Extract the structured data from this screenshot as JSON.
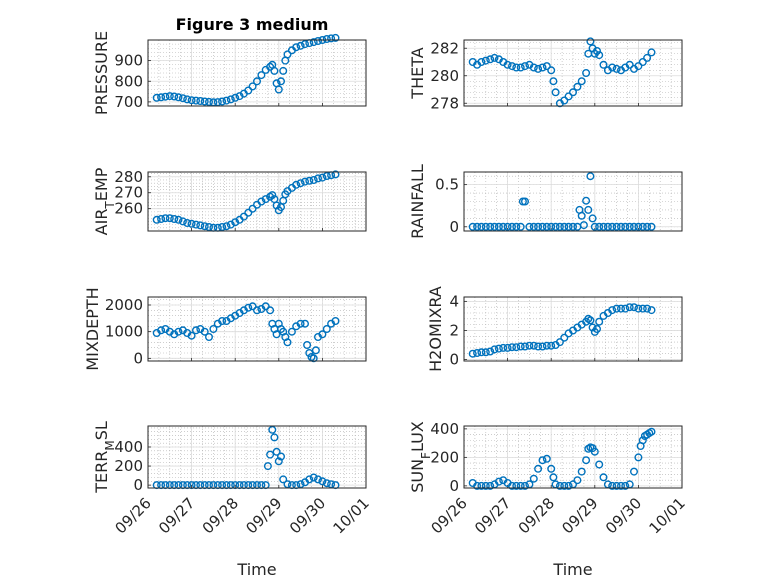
{
  "figure_title": "Figure 3 medium",
  "xlabel": "Time",
  "x_ticks": [
    "09/26",
    "09/27",
    "09/28",
    "09/29",
    "09/30",
    "10/01"
  ],
  "colors": {
    "marker": "#0072bd",
    "axis": "#262626",
    "grid": "#b0b0b0"
  },
  "chart_data": [
    {
      "type": "scatter",
      "name": "PRESSURE",
      "ylabel": "PRESSURE",
      "ylim": [
        680,
        1000
      ],
      "yticks": [
        700,
        800,
        900
      ],
      "ytick_labels": [
        "700",
        "800",
        "900"
      ],
      "xlim": [
        0,
        5
      ],
      "x": [
        0.2,
        0.3,
        0.4,
        0.5,
        0.6,
        0.7,
        0.8,
        0.9,
        1.0,
        1.1,
        1.2,
        1.3,
        1.4,
        1.5,
        1.6,
        1.7,
        1.8,
        1.9,
        2.0,
        2.1,
        2.2,
        2.3,
        2.4,
        2.5,
        2.6,
        2.7,
        2.8,
        2.85,
        2.9,
        2.95,
        3.0,
        3.05,
        3.1,
        3.15,
        3.2,
        3.3,
        3.4,
        3.5,
        3.6,
        3.7,
        3.8,
        3.9,
        4.0,
        4.1,
        4.2,
        4.3
      ],
      "values": [
        720,
        722,
        725,
        728,
        726,
        722,
        718,
        712,
        708,
        706,
        704,
        702,
        700,
        698,
        699,
        702,
        706,
        712,
        720,
        728,
        740,
        755,
        775,
        800,
        830,
        855,
        870,
        880,
        850,
        790,
        760,
        800,
        850,
        900,
        930,
        950,
        965,
        972,
        980,
        985,
        990,
        995,
        1000,
        1005,
        1008,
        1010
      ]
    },
    {
      "type": "scatter",
      "name": "THETA",
      "ylabel": "THETA",
      "ylim": [
        277.8,
        282.6
      ],
      "yticks": [
        278,
        280,
        282
      ],
      "ytick_labels": [
        "278",
        "280",
        "282"
      ],
      "xlim": [
        0,
        5
      ],
      "x": [
        0.2,
        0.3,
        0.4,
        0.5,
        0.6,
        0.7,
        0.8,
        0.9,
        1.0,
        1.1,
        1.2,
        1.3,
        1.4,
        1.5,
        1.6,
        1.7,
        1.8,
        1.9,
        2.0,
        2.05,
        2.1,
        2.2,
        2.3,
        2.4,
        2.5,
        2.6,
        2.7,
        2.8,
        2.85,
        2.9,
        2.95,
        3.0,
        3.05,
        3.1,
        3.2,
        3.3,
        3.4,
        3.5,
        3.6,
        3.7,
        3.8,
        3.9,
        4.0,
        4.1,
        4.2,
        4.3
      ],
      "values": [
        281.0,
        280.8,
        281.0,
        281.1,
        281.2,
        281.3,
        281.2,
        281.0,
        280.8,
        280.7,
        280.6,
        280.6,
        280.7,
        280.8,
        280.6,
        280.5,
        280.6,
        280.7,
        280.4,
        279.6,
        278.8,
        278.0,
        278.2,
        278.5,
        278.8,
        279.2,
        279.6,
        280.2,
        281.6,
        282.5,
        282.0,
        281.6,
        281.8,
        281.5,
        280.8,
        280.4,
        280.6,
        280.5,
        280.4,
        280.6,
        280.8,
        280.5,
        280.7,
        281.0,
        281.3,
        281.7
      ]
    },
    {
      "type": "scatter",
      "name": "AIR_TEMP",
      "ylabel": "AIR_TEMP",
      "ylim": [
        246,
        283
      ],
      "yticks": [
        260,
        270,
        280
      ],
      "ytick_labels": [
        "260",
        "270",
        "280"
      ],
      "xlim": [
        0,
        5
      ],
      "x": [
        0.2,
        0.3,
        0.4,
        0.5,
        0.6,
        0.7,
        0.8,
        0.9,
        1.0,
        1.1,
        1.2,
        1.3,
        1.4,
        1.5,
        1.6,
        1.7,
        1.8,
        1.9,
        2.0,
        2.1,
        2.2,
        2.3,
        2.4,
        2.5,
        2.6,
        2.7,
        2.8,
        2.85,
        2.9,
        2.95,
        3.0,
        3.05,
        3.1,
        3.15,
        3.2,
        3.3,
        3.4,
        3.5,
        3.6,
        3.7,
        3.8,
        3.9,
        4.0,
        4.1,
        4.2,
        4.3
      ],
      "values": [
        253,
        253.5,
        254,
        254,
        253.5,
        253,
        252,
        251,
        250.5,
        250,
        249.5,
        249,
        248.5,
        248,
        248,
        248.5,
        249,
        250,
        251.5,
        253,
        255,
        257.5,
        260,
        262.5,
        264.5,
        266,
        267.5,
        268.5,
        266,
        262,
        259,
        261,
        265,
        269,
        271,
        273,
        275,
        276,
        277,
        277.5,
        278,
        279,
        279.5,
        280.5,
        281,
        281.5
      ]
    },
    {
      "type": "scatter",
      "name": "RAINFALL",
      "ylabel": "RAINFALL",
      "ylim": [
        -0.05,
        0.65
      ],
      "yticks": [
        0,
        0.5
      ],
      "ytick_labels": [
        "0",
        "0.5"
      ],
      "xlim": [
        0,
        5
      ],
      "x": [
        0.2,
        0.3,
        0.4,
        0.5,
        0.6,
        0.7,
        0.8,
        0.9,
        1.0,
        1.1,
        1.2,
        1.3,
        1.35,
        1.4,
        1.5,
        1.6,
        1.7,
        1.8,
        1.9,
        2.0,
        2.1,
        2.2,
        2.3,
        2.4,
        2.5,
        2.6,
        2.65,
        2.7,
        2.75,
        2.8,
        2.85,
        2.9,
        2.95,
        3.0,
        3.1,
        3.2,
        3.3,
        3.4,
        3.5,
        3.6,
        3.7,
        3.8,
        3.9,
        4.0,
        4.1,
        4.2,
        4.3
      ],
      "values": [
        0,
        0,
        0,
        0,
        0,
        0,
        0,
        0,
        0,
        0,
        0,
        0,
        0.3,
        0.3,
        0,
        0,
        0,
        0,
        0,
        0,
        0,
        0,
        0,
        0,
        0,
        0,
        0.2,
        0.13,
        0.02,
        0.31,
        0.2,
        0.6,
        0.1,
        0,
        0,
        0,
        0,
        0,
        0,
        0,
        0,
        0,
        0,
        0,
        0,
        0,
        0
      ]
    },
    {
      "type": "scatter",
      "name": "MIXDEPTH",
      "ylabel": "MIXDEPTH",
      "ylim": [
        -100,
        2300
      ],
      "yticks": [
        0,
        1000,
        2000
      ],
      "ytick_labels": [
        "0",
        "1000",
        "2000"
      ],
      "xlim": [
        0,
        5
      ],
      "x": [
        0.2,
        0.3,
        0.4,
        0.5,
        0.6,
        0.7,
        0.8,
        0.9,
        1.0,
        1.1,
        1.2,
        1.3,
        1.4,
        1.5,
        1.6,
        1.7,
        1.8,
        1.9,
        2.0,
        2.1,
        2.2,
        2.3,
        2.4,
        2.5,
        2.6,
        2.7,
        2.8,
        2.85,
        2.9,
        2.95,
        3.0,
        3.05,
        3.1,
        3.15,
        3.2,
        3.3,
        3.4,
        3.5,
        3.6,
        3.65,
        3.7,
        3.75,
        3.8,
        3.85,
        3.9,
        4.0,
        4.1,
        4.2,
        4.3
      ],
      "values": [
        950,
        1050,
        1100,
        1000,
        900,
        1000,
        1050,
        950,
        850,
        1050,
        1100,
        1000,
        800,
        1100,
        1300,
        1400,
        1400,
        1500,
        1600,
        1700,
        1800,
        1900,
        1950,
        1800,
        1850,
        1950,
        1800,
        1300,
        1100,
        900,
        1300,
        1100,
        1000,
        800,
        600,
        1000,
        1200,
        1300,
        1300,
        500,
        200,
        50,
        0,
        300,
        800,
        900,
        1100,
        1300,
        1400
      ]
    },
    {
      "type": "scatter",
      "name": "H2OMIXRA",
      "ylabel": "H2OMIXRA",
      "ylim": [
        -0.1,
        4.3
      ],
      "yticks": [
        0,
        2,
        4
      ],
      "ytick_labels": [
        "0",
        "2",
        "4"
      ],
      "xlim": [
        0,
        5
      ],
      "x": [
        0.2,
        0.3,
        0.4,
        0.5,
        0.6,
        0.7,
        0.8,
        0.9,
        1.0,
        1.1,
        1.2,
        1.3,
        1.4,
        1.5,
        1.6,
        1.7,
        1.8,
        1.9,
        2.0,
        2.1,
        2.2,
        2.3,
        2.4,
        2.5,
        2.6,
        2.7,
        2.8,
        2.85,
        2.9,
        2.95,
        3.0,
        3.05,
        3.1,
        3.2,
        3.3,
        3.4,
        3.5,
        3.6,
        3.7,
        3.8,
        3.9,
        4.0,
        4.1,
        4.2,
        4.3
      ],
      "values": [
        0.4,
        0.45,
        0.5,
        0.5,
        0.55,
        0.7,
        0.75,
        0.8,
        0.8,
        0.85,
        0.85,
        0.9,
        0.9,
        0.95,
        0.95,
        0.9,
        0.9,
        0.95,
        0.95,
        1.0,
        1.2,
        1.5,
        1.8,
        2.0,
        2.2,
        2.4,
        2.6,
        2.8,
        2.7,
        2.2,
        1.9,
        2.1,
        2.6,
        3.0,
        3.2,
        3.4,
        3.5,
        3.5,
        3.5,
        3.6,
        3.6,
        3.5,
        3.5,
        3.5,
        3.4
      ]
    },
    {
      "type": "scatter",
      "name": "TERR_MSL",
      "ylabel": "TERR_MSL",
      "ylim": [
        -30,
        620
      ],
      "yticks": [
        0,
        200,
        400
      ],
      "ytick_labels": [
        "0",
        "200",
        "400"
      ],
      "xlim": [
        0,
        5
      ],
      "x": [
        0.2,
        0.3,
        0.4,
        0.5,
        0.6,
        0.7,
        0.8,
        0.9,
        1.0,
        1.1,
        1.2,
        1.3,
        1.4,
        1.5,
        1.6,
        1.7,
        1.8,
        1.9,
        2.0,
        2.1,
        2.2,
        2.3,
        2.4,
        2.5,
        2.6,
        2.7,
        2.75,
        2.8,
        2.85,
        2.9,
        2.95,
        3.0,
        3.05,
        3.1,
        3.2,
        3.3,
        3.4,
        3.5,
        3.6,
        3.7,
        3.8,
        3.9,
        4.0,
        4.1,
        4.2,
        4.3
      ],
      "values": [
        0,
        0,
        0,
        0,
        0,
        0,
        0,
        0,
        0,
        0,
        0,
        0,
        0,
        0,
        0,
        0,
        0,
        0,
        0,
        0,
        0,
        0,
        0,
        0,
        0,
        0,
        200,
        320,
        580,
        500,
        350,
        250,
        300,
        60,
        10,
        0,
        0,
        10,
        30,
        60,
        80,
        60,
        40,
        20,
        10,
        0
      ]
    },
    {
      "type": "scatter",
      "name": "SUN_FLUX",
      "ylabel": "SUN_FLUX",
      "ylim": [
        -15,
        420
      ],
      "yticks": [
        0,
        200,
        400
      ],
      "ytick_labels": [
        "0",
        "200",
        "400"
      ],
      "xlim": [
        0,
        5
      ],
      "x": [
        0.2,
        0.3,
        0.4,
        0.5,
        0.6,
        0.7,
        0.8,
        0.9,
        1.0,
        1.1,
        1.2,
        1.3,
        1.4,
        1.5,
        1.6,
        1.7,
        1.8,
        1.9,
        2.0,
        2.05,
        2.1,
        2.2,
        2.3,
        2.4,
        2.5,
        2.6,
        2.7,
        2.8,
        2.85,
        2.9,
        2.95,
        3.0,
        3.1,
        3.2,
        3.3,
        3.4,
        3.5,
        3.6,
        3.7,
        3.8,
        3.9,
        4.0,
        4.05,
        4.1,
        4.15,
        4.2,
        4.25,
        4.3
      ],
      "values": [
        20,
        0,
        0,
        0,
        0,
        10,
        30,
        40,
        20,
        0,
        0,
        0,
        0,
        10,
        50,
        120,
        180,
        190,
        120,
        60,
        10,
        0,
        0,
        0,
        10,
        40,
        100,
        180,
        260,
        270,
        265,
        240,
        150,
        60,
        10,
        0,
        0,
        0,
        0,
        10,
        100,
        200,
        280,
        320,
        350,
        360,
        370,
        380
      ]
    }
  ]
}
